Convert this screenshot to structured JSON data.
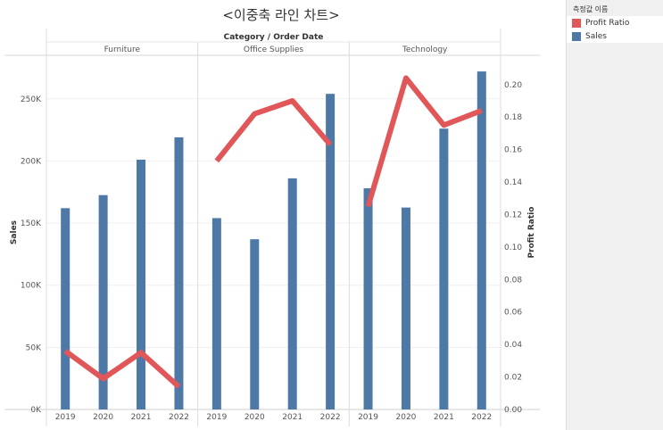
{
  "chart_data": {
    "type": "bar",
    "title": "<이중축 라인 차트>",
    "header": "Category  /  Order Date",
    "panels": [
      {
        "name": "Furniture",
        "years": [
          "2019",
          "2020",
          "2021",
          "2022"
        ],
        "sales": [
          162000,
          172500,
          201000,
          219000
        ],
        "profit_ratio": [
          0.036,
          0.019,
          0.035,
          0.014
        ]
      },
      {
        "name": "Office Supplies",
        "years": [
          "2019",
          "2020",
          "2021",
          "2022"
        ],
        "sales": [
          154000,
          137000,
          186000,
          254000
        ],
        "profit_ratio": [
          0.153,
          0.182,
          0.19,
          0.163
        ]
      },
      {
        "name": "Technology",
        "years": [
          "2019",
          "2020",
          "2021",
          "2022"
        ],
        "sales": [
          178000,
          162500,
          226000,
          272000
        ],
        "profit_ratio": [
          0.125,
          0.204,
          0.175,
          0.184
        ]
      }
    ],
    "ylabel_left": "Sales",
    "ylabel_right": "Profit Ratio",
    "ylim_left": [
      0,
      285000
    ],
    "ylim_right": [
      0,
      0.218
    ],
    "left_ticks": [
      {
        "value": 0,
        "label": "0K"
      },
      {
        "value": 50000,
        "label": "50K"
      },
      {
        "value": 100000,
        "label": "100K"
      },
      {
        "value": 150000,
        "label": "150K"
      },
      {
        "value": 200000,
        "label": "200K"
      },
      {
        "value": 250000,
        "label": "250K"
      }
    ],
    "right_ticks": [
      {
        "value": 0.0,
        "label": "0.00"
      },
      {
        "value": 0.02,
        "label": "0.02"
      },
      {
        "value": 0.04,
        "label": "0.04"
      },
      {
        "value": 0.06,
        "label": "0.06"
      },
      {
        "value": 0.08,
        "label": "0.08"
      },
      {
        "value": 0.1,
        "label": "0.10"
      },
      {
        "value": 0.12,
        "label": "0.12"
      },
      {
        "value": 0.14,
        "label": "0.14"
      },
      {
        "value": 0.16,
        "label": "0.16"
      },
      {
        "value": 0.18,
        "label": "0.18"
      },
      {
        "value": 0.2,
        "label": "0.20"
      }
    ],
    "legend": {
      "title": "측정값 이름",
      "placement": "right",
      "items": [
        {
          "label": "Profit Ratio",
          "color": "#e15759"
        },
        {
          "label": "Sales",
          "color": "#4e79a7"
        }
      ]
    },
    "colors": {
      "sales": "#4e79a7",
      "profit_ratio": "#e15759"
    },
    "grid": true
  }
}
